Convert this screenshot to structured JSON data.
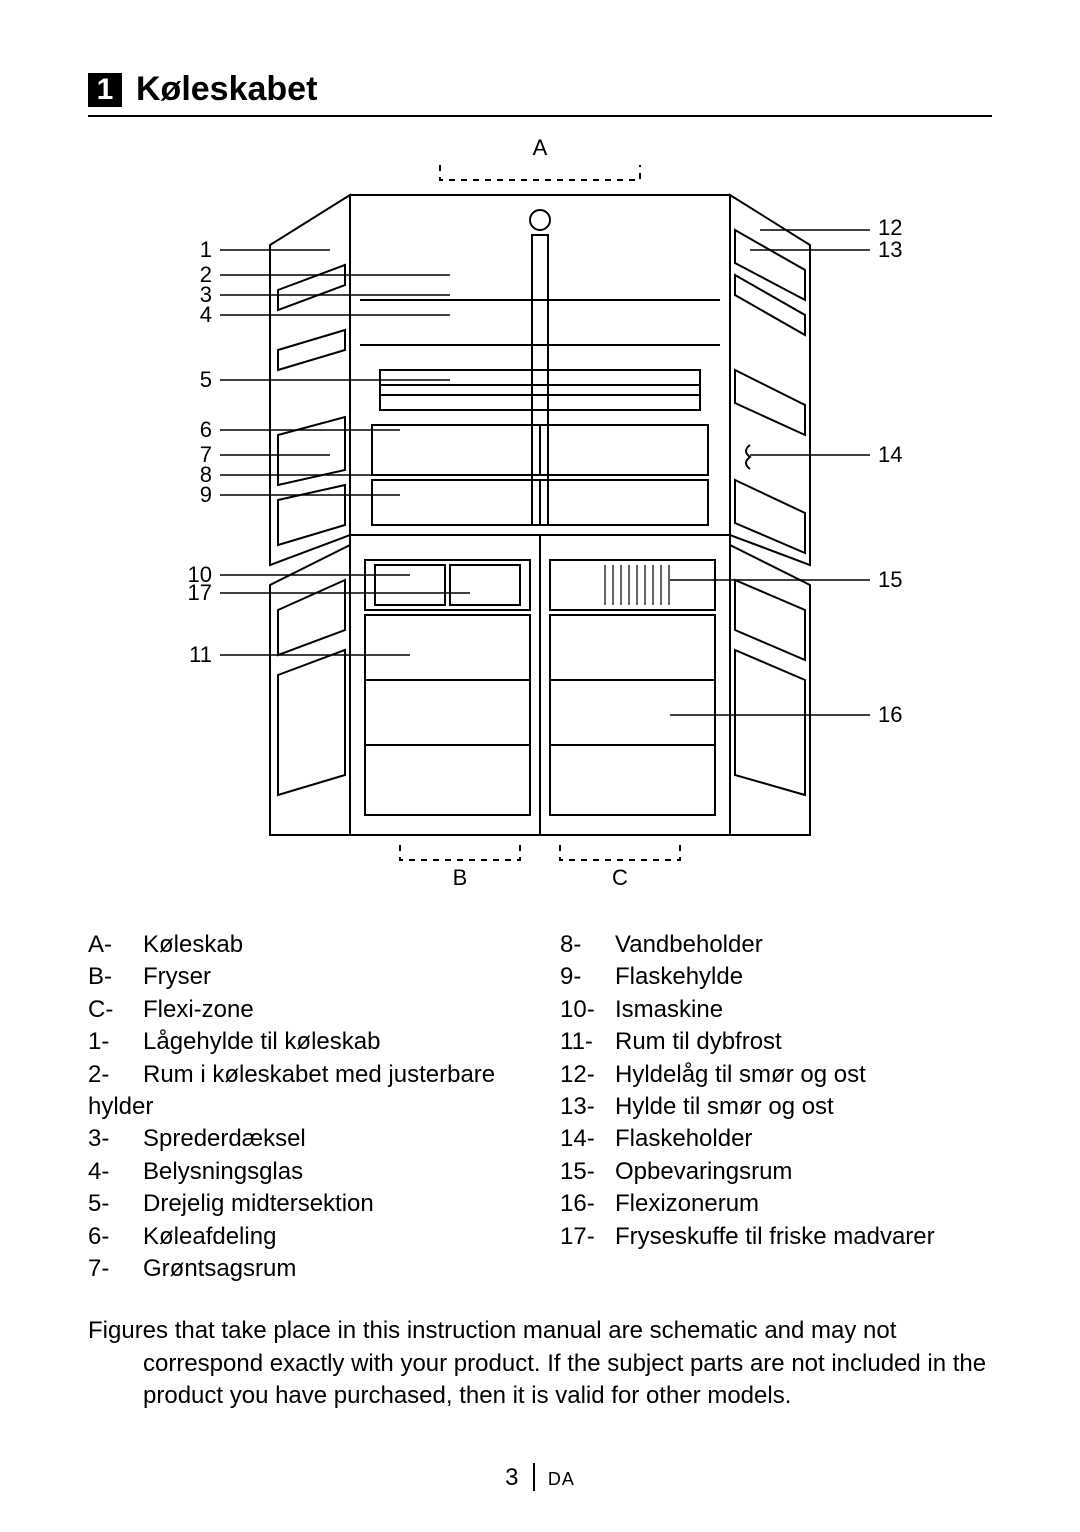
{
  "heading": {
    "number": "1",
    "title": "Køleskabet"
  },
  "figure": {
    "stroke": "#000000",
    "dash": "6,6",
    "labels": {
      "A": "A",
      "B": "B",
      "C": "C"
    },
    "left_numbers": [
      "1",
      "2",
      "3",
      "4",
      "5",
      "6",
      "7",
      "8",
      "9",
      "10",
      "17",
      "11"
    ],
    "right_numbers": [
      "12",
      "13",
      "14",
      "15",
      "16"
    ]
  },
  "legend": {
    "left": [
      {
        "idx": "A-",
        "text": "Køleskab"
      },
      {
        "idx": "B-",
        "text": "Fryser"
      },
      {
        "idx": "C-",
        "text": "Flexi-zone"
      },
      {
        "idx": "1-",
        "text": "Lågehylde til køleskab"
      },
      {
        "idx": "2-",
        "text": "Rum i køleskabet med justerbare"
      },
      {
        "idx": "",
        "text": "hylder",
        "noindent": true
      },
      {
        "idx": "3-",
        "text": "Sprederdæksel"
      },
      {
        "idx": "4-",
        "text": "Belysningsglas"
      },
      {
        "idx": "5-",
        "text": "Drejelig midtersektion"
      },
      {
        "idx": "6-",
        "text": "Køleafdeling"
      },
      {
        "idx": "7-",
        "text": "Grøntsagsrum"
      }
    ],
    "right": [
      {
        "idx": "8-",
        "text": "Vandbeholder"
      },
      {
        "idx": "9-",
        "text": "Flaskehylde"
      },
      {
        "idx": "10-",
        "text": "Ismaskine"
      },
      {
        "idx": "11-",
        "text": "Rum til dybfrost"
      },
      {
        "idx": "12-",
        "text": "Hyldelåg til smør og ost"
      },
      {
        "idx": "13-",
        "text": "Hylde til smør og ost"
      },
      {
        "idx": "14-",
        "text": "Flaskeholder"
      },
      {
        "idx": "15-",
        "text": "Opbevaringsrum"
      },
      {
        "idx": "16-",
        "text": "Flexizonerum"
      },
      {
        "idx": "17-",
        "text": "Fryseskuffe til friske madvarer"
      }
    ]
  },
  "disclaimer": {
    "line1": "Figures that take place in this instruction manual are schematic and may not",
    "line2": "correspond exactly with your product. If the subject parts are not included in the",
    "line3": "product you have purchased, then it is valid for other models."
  },
  "footer": {
    "page": "3",
    "lang": "DA"
  }
}
